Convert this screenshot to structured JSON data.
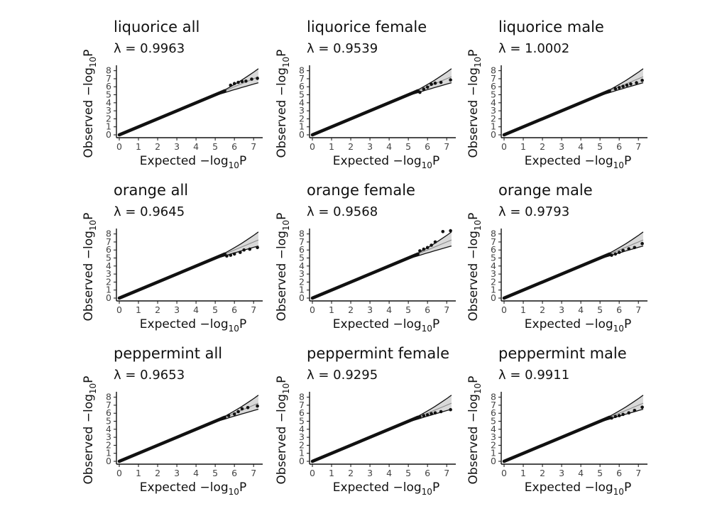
{
  "chart_data": [
    {
      "type": "scatter",
      "title": "liquorice all",
      "lambda_label": "λ = 0.9963",
      "tail": [
        [
          5.8,
          6.2
        ],
        [
          6.0,
          6.4
        ],
        [
          6.2,
          6.55
        ],
        [
          6.4,
          6.65
        ],
        [
          6.6,
          6.7
        ],
        [
          6.9,
          6.95
        ],
        [
          7.2,
          7.05
        ]
      ]
    },
    {
      "type": "scatter",
      "title": "liquorice female",
      "lambda_label": "λ = 0.9539",
      "tail": [
        [
          5.6,
          5.3
        ],
        [
          5.8,
          5.7
        ],
        [
          6.0,
          5.95
        ],
        [
          6.2,
          6.3
        ],
        [
          6.4,
          6.45
        ],
        [
          6.7,
          6.55
        ],
        [
          7.2,
          6.85
        ]
      ]
    },
    {
      "type": "scatter",
      "title": "liquorice male",
      "lambda_label": "λ = 1.0002",
      "tail": [
        [
          5.8,
          5.75
        ],
        [
          6.0,
          5.9
        ],
        [
          6.2,
          6.05
        ],
        [
          6.4,
          6.2
        ],
        [
          6.6,
          6.35
        ],
        [
          6.9,
          6.5
        ],
        [
          7.2,
          6.8
        ]
      ]
    },
    {
      "type": "scatter",
      "title": "orange all",
      "lambda_label": "λ = 0.9645",
      "tail": [
        [
          5.6,
          5.25
        ],
        [
          5.8,
          5.35
        ],
        [
          6.0,
          5.5
        ],
        [
          6.3,
          5.7
        ],
        [
          6.5,
          6.0
        ],
        [
          6.8,
          6.1
        ],
        [
          7.2,
          6.3
        ]
      ]
    },
    {
      "type": "scatter",
      "title": "orange female",
      "lambda_label": "λ = 0.9568",
      "tail": [
        [
          5.6,
          5.9
        ],
        [
          5.8,
          6.1
        ],
        [
          6.0,
          6.3
        ],
        [
          6.2,
          6.6
        ],
        [
          6.4,
          7.0
        ],
        [
          6.8,
          8.3
        ],
        [
          7.2,
          8.4
        ]
      ]
    },
    {
      "type": "scatter",
      "title": "orange male",
      "lambda_label": "λ = 0.9793",
      "tail": [
        [
          5.6,
          5.35
        ],
        [
          5.8,
          5.5
        ],
        [
          6.0,
          5.7
        ],
        [
          6.2,
          5.95
        ],
        [
          6.5,
          6.15
        ],
        [
          6.8,
          6.3
        ],
        [
          7.2,
          6.8
        ]
      ]
    },
    {
      "type": "scatter",
      "title": "peppermint all",
      "lambda_label": "λ = 0.9653",
      "tail": [
        [
          5.4,
          5.4
        ],
        [
          5.7,
          5.7
        ],
        [
          6.0,
          5.9
        ],
        [
          6.2,
          6.2
        ],
        [
          6.4,
          6.55
        ],
        [
          6.7,
          6.7
        ],
        [
          7.2,
          6.9
        ]
      ]
    },
    {
      "type": "scatter",
      "title": "peppermint female",
      "lambda_label": "λ = 0.9295",
      "tail": [
        [
          5.6,
          5.55
        ],
        [
          5.8,
          5.7
        ],
        [
          6.0,
          5.8
        ],
        [
          6.2,
          5.95
        ],
        [
          6.4,
          6.05
        ],
        [
          6.7,
          6.2
        ],
        [
          7.2,
          6.45
        ]
      ]
    },
    {
      "type": "scatter",
      "title": "peppermint male",
      "lambda_label": "λ = 0.9911",
      "tail": [
        [
          5.6,
          5.4
        ],
        [
          5.8,
          5.6
        ],
        [
          6.0,
          5.7
        ],
        [
          6.2,
          5.85
        ],
        [
          6.5,
          6.05
        ],
        [
          6.8,
          6.35
        ],
        [
          7.2,
          6.75
        ]
      ]
    }
  ],
  "axes": {
    "xlabel_main": "Expected −log",
    "xlabel_sub": "10",
    "xlabel_end": "P",
    "ylabel_main": "Observed −log",
    "ylabel_sub": "10",
    "ylabel_end": "P",
    "xlim": [
      0,
      7.4
    ],
    "ylim": [
      0,
      8.5
    ],
    "xticks": [
      "0",
      "1",
      "2",
      "3",
      "4",
      "5",
      "6",
      "7"
    ],
    "yticks": [
      "0",
      "1",
      "2",
      "3",
      "4",
      "5",
      "6",
      "7",
      "8"
    ],
    "bulk_max": 5.5,
    "band_start": 4.6
  },
  "colors": {
    "points": "#111111",
    "band": "#d9d9d9",
    "band_line": "#111111",
    "diagonal": "#888888"
  }
}
